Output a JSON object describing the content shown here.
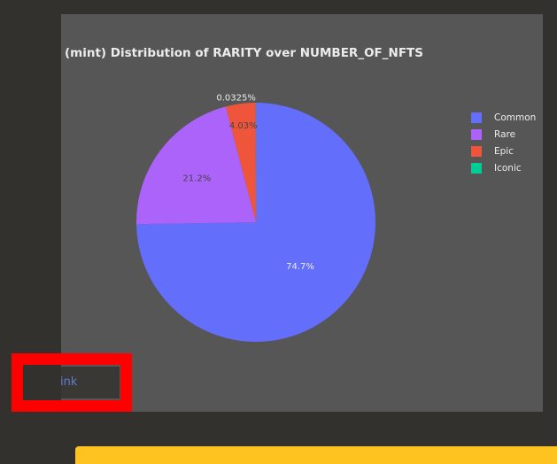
{
  "chart_data": {
    "type": "pie",
    "title": "(mint) Distribution of RARITY over NUMBER_OF_NFTS",
    "series": [
      {
        "name": "Common",
        "value": 74.7,
        "label": "74.7%",
        "color": "#636efa"
      },
      {
        "name": "Rare",
        "value": 21.2,
        "label": "21.2%",
        "color": "#ab63fa"
      },
      {
        "name": "Epic",
        "value": 4.03,
        "label": "4.03%",
        "color": "#ef553b"
      },
      {
        "name": "Iconic",
        "value": 0.0325,
        "label": "0.0325%",
        "color": "#00cc96"
      }
    ],
    "legend_position": "right",
    "label_color_light": "#ececec",
    "label_color_dark": "#444444"
  },
  "link": {
    "label": "ink"
  },
  "colors": {
    "page_background": "#33312d",
    "card_background": "#565656",
    "highlight": "#ff0000",
    "alert": "#ffc320"
  }
}
